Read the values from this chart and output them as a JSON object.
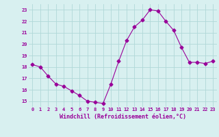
{
  "x": [
    0,
    1,
    2,
    3,
    4,
    5,
    6,
    7,
    8,
    9,
    10,
    11,
    12,
    13,
    14,
    15,
    16,
    17,
    18,
    19,
    20,
    21,
    22,
    23
  ],
  "y": [
    18.2,
    18.0,
    17.2,
    16.5,
    16.3,
    15.9,
    15.5,
    15.0,
    14.9,
    14.8,
    16.5,
    18.5,
    20.3,
    21.5,
    22.1,
    23.0,
    22.9,
    22.0,
    21.2,
    19.7,
    18.4,
    18.4,
    18.3,
    18.5
  ],
  "line_color": "#990099",
  "marker": "D",
  "marker_size": 2.5,
  "bg_color": "#d8f0f0",
  "grid_color": "#b0d8d8",
  "xlabel": "Windchill (Refroidissement éolien,°C)",
  "xlabel_color": "#990099",
  "tick_color": "#990099",
  "ylim": [
    14.5,
    23.5
  ],
  "xlim": [
    -0.5,
    23.5
  ],
  "yticks": [
    15,
    16,
    17,
    18,
    19,
    20,
    21,
    22,
    23
  ],
  "xticks": [
    0,
    1,
    2,
    3,
    4,
    5,
    6,
    7,
    8,
    9,
    10,
    11,
    12,
    13,
    14,
    15,
    16,
    17,
    18,
    19,
    20,
    21,
    22,
    23
  ]
}
